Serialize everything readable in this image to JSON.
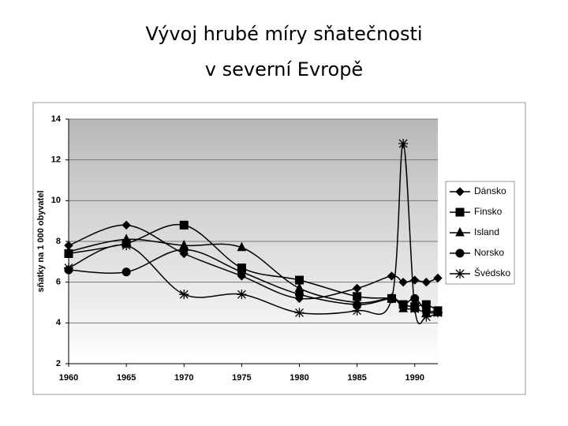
{
  "chart_data": {
    "type": "line",
    "title": "Vývoj hrubé míry sňatečnosti",
    "subtitle": "v severní Evropě",
    "y_label": "sňatky na 1 000 obyvatel",
    "x": [
      1960,
      1965,
      1970,
      1975,
      1980,
      1985,
      1988,
      1989,
      1990,
      1991,
      1992
    ],
    "xlim": [
      1960,
      1992
    ],
    "xticks": [
      1960,
      1965,
      1970,
      1975,
      1980,
      1985,
      1990
    ],
    "ylim": [
      2,
      14
    ],
    "yticks": [
      2,
      4,
      6,
      8,
      10,
      12,
      14
    ],
    "grid": true,
    "legend": "right",
    "series": [
      {
        "name": "Dánsko",
        "color": "#000000",
        "marker": "diamond",
        "values": [
          7.8,
          8.8,
          7.4,
          6.3,
          5.2,
          5.7,
          6.3,
          6.0,
          6.1,
          6.0,
          6.2
        ]
      },
      {
        "name": "Finsko",
        "color": "#000000",
        "marker": "square",
        "values": [
          7.4,
          7.9,
          8.8,
          6.7,
          6.1,
          5.3,
          5.2,
          4.9,
          4.8,
          4.9,
          4.6
        ]
      },
      {
        "name": "Island",
        "color": "#000000",
        "marker": "triangle",
        "values": [
          7.5,
          8.1,
          7.8,
          7.7,
          5.7,
          5.0,
          5.2,
          4.7,
          4.7,
          4.5,
          4.5
        ]
      },
      {
        "name": "Norsko",
        "color": "#000000",
        "marker": "circle",
        "values": [
          6.6,
          6.5,
          7.6,
          6.5,
          5.4,
          4.9,
          5.2,
          4.9,
          5.2,
          4.6,
          4.6
        ]
      },
      {
        "name": "Švédsko",
        "color": "#000000",
        "marker": "star",
        "values": [
          6.7,
          7.8,
          5.4,
          5.4,
          4.5,
          4.6,
          5.2,
          12.8,
          4.7,
          4.3,
          4.5
        ]
      }
    ]
  }
}
